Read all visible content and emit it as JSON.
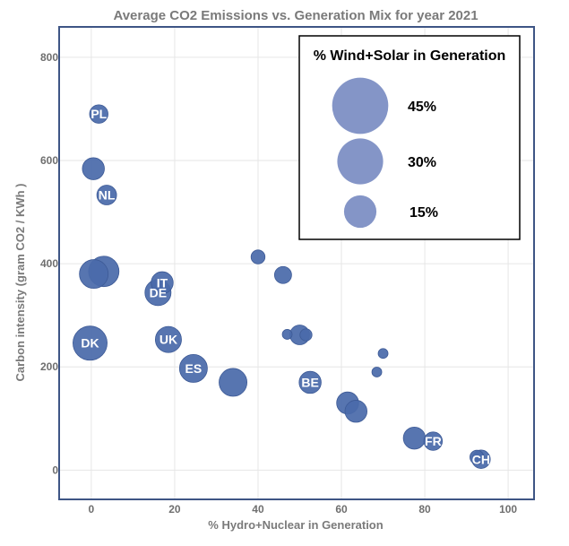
{
  "chart_data": {
    "type": "scatter",
    "title": "Average CO2 Emissions vs. Generation Mix for year 2021",
    "xlabel": "% Hydro+Nuclear in Generation",
    "ylabel": "Carbon intensity (gram CO2 / KWh )",
    "xlim": [
      -7.5,
      106
    ],
    "ylim": [
      -55,
      857
    ],
    "x_ticks": [
      0,
      20,
      40,
      60,
      80,
      100
    ],
    "y_ticks": [
      0,
      200,
      400,
      600,
      800
    ],
    "x_tick_labels": [
      "0",
      "20",
      "40",
      "60",
      "80",
      "100"
    ],
    "y_tick_labels": [
      "0",
      "200",
      "400",
      "600",
      "800"
    ],
    "grid": true,
    "marker_color": "#4a6aaa",
    "legend": {
      "title": "% Wind+Solar in Generation",
      "position": "top-right",
      "entries": [
        {
          "label": "45%",
          "size_value": 45
        },
        {
          "label": "30%",
          "size_value": 30
        },
        {
          "label": "15%",
          "size_value": 15
        }
      ]
    },
    "points": [
      {
        "x": 1.8,
        "y": 690,
        "size": 14,
        "label": "PL"
      },
      {
        "x": 0.5,
        "y": 584,
        "size": 20,
        "label": ""
      },
      {
        "x": 3.7,
        "y": 533,
        "size": 16,
        "label": "NL"
      },
      {
        "x": 3,
        "y": 385,
        "size": 38,
        "label": ""
      },
      {
        "x": 0.6,
        "y": 380,
        "size": 34,
        "label": ""
      },
      {
        "x": 17,
        "y": 363,
        "size": 20,
        "label": "IT"
      },
      {
        "x": 16,
        "y": 344,
        "size": 28,
        "label": "DE"
      },
      {
        "x": 40,
        "y": 413,
        "size": 8,
        "label": ""
      },
      {
        "x": 46,
        "y": 378,
        "size": 12,
        "label": ""
      },
      {
        "x": -0.3,
        "y": 246,
        "size": 48,
        "label": "DK"
      },
      {
        "x": 18.5,
        "y": 253,
        "size": 28,
        "label": "UK"
      },
      {
        "x": 24.5,
        "y": 197,
        "size": 32,
        "label": "ES"
      },
      {
        "x": 34,
        "y": 170,
        "size": 32,
        "label": ""
      },
      {
        "x": 47,
        "y": 263,
        "size": 4,
        "label": ""
      },
      {
        "x": 50,
        "y": 262,
        "size": 16,
        "label": ""
      },
      {
        "x": 51.5,
        "y": 262,
        "size": 6,
        "label": ""
      },
      {
        "x": 52.5,
        "y": 170,
        "size": 20,
        "label": "BE"
      },
      {
        "x": 61.5,
        "y": 130,
        "size": 20,
        "label": ""
      },
      {
        "x": 63.5,
        "y": 114,
        "size": 20,
        "label": ""
      },
      {
        "x": 70,
        "y": 226,
        "size": 4,
        "label": ""
      },
      {
        "x": 68.5,
        "y": 190,
        "size": 4,
        "label": ""
      },
      {
        "x": 77.5,
        "y": 62,
        "size": 20,
        "label": ""
      },
      {
        "x": 82,
        "y": 56,
        "size": 14,
        "label": "FR"
      },
      {
        "x": 92.5,
        "y": 25,
        "size": 8,
        "label": ""
      },
      {
        "x": 93.5,
        "y": 21,
        "size": 14,
        "label": "CH"
      }
    ]
  }
}
